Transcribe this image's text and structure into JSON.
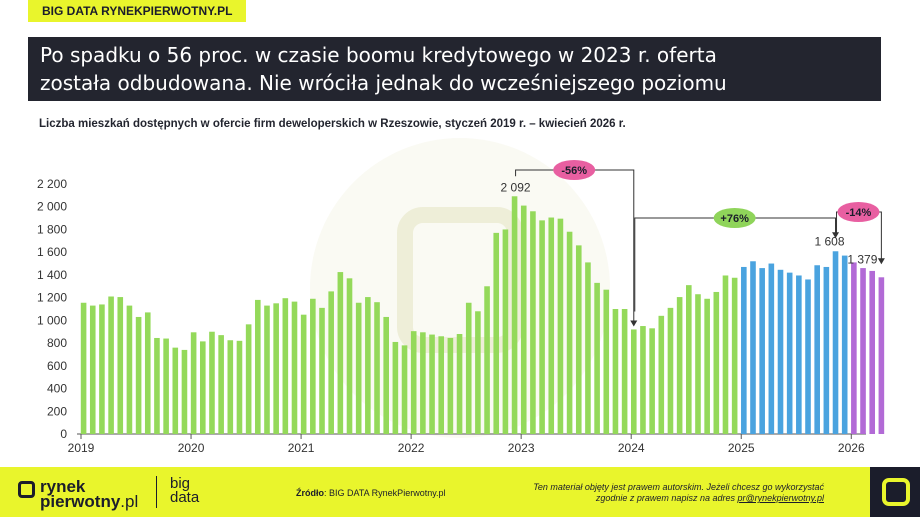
{
  "brand": {
    "tag": "BIG DATA RYNEKPIERWOTNY.PL"
  },
  "headline": {
    "line1": "Po spadku o 56 proc. w czasie boomu kredytowego w 2023 r. oferta",
    "line2": "została odbudowana. Nie wróciła jednak do wcześniejszego poziomu"
  },
  "subtitle": "Liczba mieszkań dostępnych w ofercie firm deweloperskich w Rzeszowie, styczeń 2019 r. – kwiecień 2026 r.",
  "chart_data": {
    "type": "bar",
    "title": "Liczba mieszkań dostępnych w ofercie firm deweloperskich w Rzeszowie, styczeń 2019 r. – kwiecień 2026 r.",
    "ylim": [
      0,
      2200
    ],
    "y_ticks": [
      0,
      200,
      400,
      600,
      800,
      1000,
      1200,
      1400,
      1600,
      1800,
      2000,
      2200
    ],
    "y_tick_labels": [
      "0",
      "200",
      "400",
      "600",
      "800",
      "1 000",
      "1 200",
      "1 400",
      "1 600",
      "1 800",
      "2 000",
      "2 200"
    ],
    "x_tick_labels": [
      "2019",
      "2020",
      "2021",
      "2022",
      "2023",
      "2024",
      "2025",
      "2026"
    ],
    "x_tick_index": [
      0,
      12,
      24,
      36,
      48,
      60,
      72,
      84
    ],
    "colors": {
      "green": "#94d95a",
      "blue": "#4aa3df",
      "purple": "#b26ad6"
    },
    "series": [
      {
        "color_key": "green",
        "start_index": 0,
        "values": [
          1155,
          1130,
          1140,
          1210,
          1205,
          1130,
          1030,
          1070,
          845,
          840,
          760,
          740,
          895,
          815,
          900,
          870,
          825,
          820,
          965,
          1180,
          1130,
          1150,
          1195,
          1165,
          1050,
          1190,
          1110,
          1255,
          1425,
          1370,
          1155,
          1205,
          1160,
          1030,
          810,
          780,
          905,
          895,
          875,
          860,
          845,
          880,
          1155,
          1080,
          1300,
          1770,
          1800,
          2092,
          2010,
          1960,
          1880,
          1905,
          1895,
          1780,
          1660,
          1510,
          1330,
          1270,
          1100,
          1100,
          920,
          950,
          930,
          1040,
          1110,
          1205,
          1310,
          1230,
          1190,
          1250,
          1395,
          1375
        ]
      },
      {
        "color_key": "blue",
        "start_index": 72,
        "values": [
          1470,
          1520,
          1460,
          1500,
          1445,
          1420,
          1395,
          1360,
          1485,
          1470,
          1608,
          1570
        ]
      },
      {
        "color_key": "purple",
        "start_index": 84,
        "values": [
          1510,
          1460,
          1435,
          1379
        ]
      }
    ],
    "value_labels": [
      {
        "index": 47,
        "text": "2 092"
      },
      {
        "index": 82,
        "text": "1 608"
      },
      {
        "index": 87,
        "text": "1 379"
      }
    ],
    "annotations": [
      {
        "text": "-56%",
        "from_index": 47,
        "to_index": 60,
        "color": "#e85fa1"
      },
      {
        "text": "+76%",
        "from_index": 60,
        "to_index": 82,
        "color": "#8fd45a"
      },
      {
        "text": "-14%",
        "from_index": 82,
        "to_index": 87,
        "color": "#e85fa1"
      }
    ]
  },
  "footer": {
    "logo_line1": "rynek",
    "logo_line2": "pierwotny",
    "logo_suffix": ".pl",
    "bigdata_line1": "big",
    "bigdata_line2": "data",
    "source_label": "Źródło",
    "source_text": ": BIG DATA RynekPierwotny.pl",
    "copyright_line1": "Ten materiał objęty jest prawem autorskim. Jeżeli chcesz go wykorzystać",
    "copyright_line2": "zgodnie z prawem napisz na adres",
    "copyright_email": "pr@rynekpierwotny.pl"
  }
}
